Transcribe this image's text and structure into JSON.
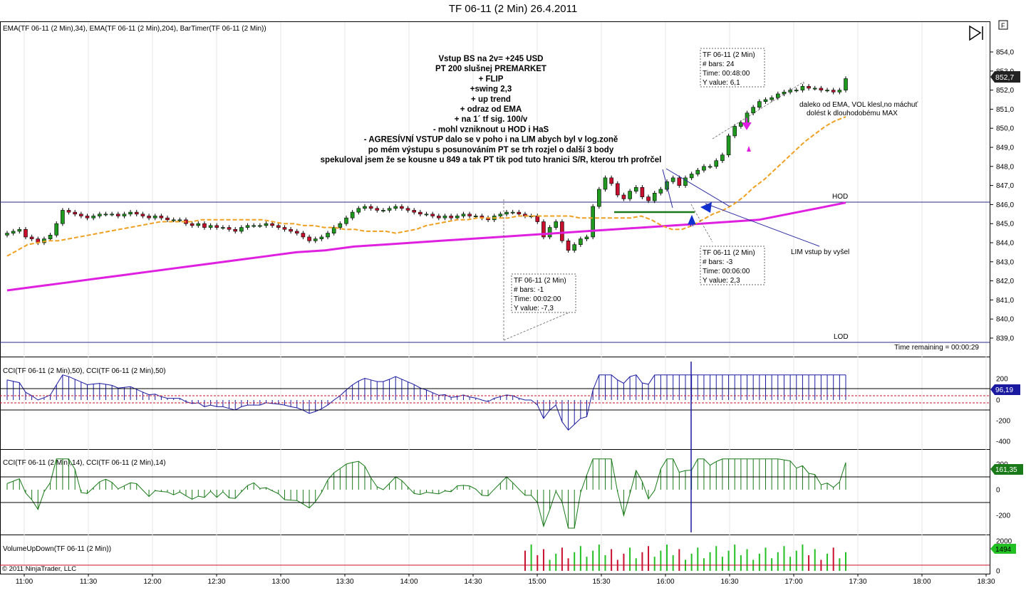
{
  "window_title": "TF 06-11 (2 Min)  26.4.2011",
  "panels": {
    "price_label": "EMA(TF 06-11 (2 Min),34), EMA(TF 06-11 (2 Min),204), BarTimer(TF 06-11 (2 Min))",
    "cci50_label": "CCI(TF 06-11 (2 Min),50), CCI(TF 06-11 (2 Min),50)",
    "cci14_label": "CCI(TF 06-11 (2 Min),14), CCI(TF 06-11 (2 Min),14)",
    "volume_label": "VolumeUpDown(TF 06-11 (2 Min))",
    "copyright": "© 2011 NinjaTrader, LLC",
    "time_remaining": "Time remaining = 00:00:29",
    "hod": "HOD",
    "lod": "LOD",
    "f_button": "F"
  },
  "annotation_lines": [
    "Vstup BS na 2v= +245 USD",
    "PT 200 slušnej PREMARKET",
    "+ FLIP",
    "+swing 2,3",
    "+ up trend",
    "+ odraz od EMA",
    "+ na 1´ tf sig. 100/v",
    "- mohl vzniknout u HOD i HaS",
    "- AGRESÍVNÍ VSTUP dalo se v poho i na LIM abych byl v log.zoně",
    "po mém výstupu s posunováním PT se trh rozjel o další 3 body",
    "spekuloval jsem že se kousne u 849 a tak PT tik pod tuto hranici S/R, kterou trh profrčel"
  ],
  "side_notes": {
    "ema_note_line1": "daleko od EMA, VOL klesl,no máchuť",
    "ema_note_line2": "dolést k dlouhodobému MAX",
    "lim_note": "LIM vstup by vyšel"
  },
  "measure_boxes": [
    {
      "lines": [
        "TF 06-11 (2 Min)",
        "# bars:   24",
        "Time:     00:48:00",
        "Y value: 6,1"
      ]
    },
    {
      "lines": [
        "TF 06-11 (2 Min)",
        "# bars:   -3",
        "Time:     00:06:00",
        "Y value: 2,3"
      ]
    },
    {
      "lines": [
        "TF 06-11 (2 Min)",
        "# bars:   -1",
        "Time:     00:02:00",
        "Y value: -7,3"
      ]
    }
  ],
  "colors": {
    "up_bar": "#1f9a1f",
    "down_bar": "#c8102e",
    "ema34": "#f0a020",
    "ema204": "#e020e0",
    "cci50": "#1a1aa0",
    "cci14": "#1a7a1a",
    "level_line": "#2a2a8a",
    "annotation_arrow": "#1030d0"
  },
  "chart_data": {
    "type": "candlestick",
    "x_axis_labels": [
      "11:00",
      "11:30",
      "12:00",
      "12:30",
      "13:00",
      "13:30",
      "14:00",
      "14:30",
      "15:00",
      "15:30",
      "16:00",
      "16:30",
      "17:00",
      "17:30",
      "18:00",
      "18:30"
    ],
    "price_axis_labels": [
      "839,0",
      "840,0",
      "841,0",
      "842,0",
      "843,0",
      "844,0",
      "845,0",
      "846,0",
      "847,0",
      "848,0",
      "849,0",
      "850,0",
      "851,0",
      "852,0",
      "853,0",
      "854,0"
    ],
    "price_ylim": [
      838.7,
      854.5
    ],
    "last_price": "852,7",
    "hod": 846.1,
    "lod": 838.8,
    "close_series": [
      844.5,
      844.6,
      844.7,
      844.3,
      844.2,
      844.0,
      844.2,
      844.4,
      845.0,
      845.7,
      845.6,
      845.5,
      845.4,
      845.3,
      845.4,
      845.5,
      845.5,
      845.5,
      845.4,
      845.5,
      845.6,
      845.5,
      845.4,
      845.3,
      845.4,
      845.3,
      845.2,
      845.2,
      845.2,
      845.0,
      844.9,
      845.0,
      844.8,
      844.9,
      844.8,
      844.8,
      844.7,
      844.6,
      844.8,
      844.9,
      844.9,
      844.9,
      845.0,
      844.9,
      844.8,
      844.7,
      844.6,
      844.5,
      844.3,
      844.1,
      844.2,
      844.3,
      844.5,
      844.8,
      845.0,
      845.3,
      845.6,
      845.8,
      845.9,
      845.8,
      845.7,
      845.7,
      845.8,
      845.9,
      845.8,
      845.7,
      845.6,
      845.5,
      845.5,
      845.4,
      845.3,
      845.4,
      845.3,
      845.4,
      845.5,
      845.4,
      845.4,
      845.3,
      845.2,
      845.4,
      845.5,
      845.6,
      845.6,
      845.5,
      845.4,
      845.4,
      845.1,
      844.3,
      844.8,
      845.1,
      844.1,
      843.6,
      843.9,
      844.2,
      844.3,
      845.9,
      846.8,
      847.4,
      847.1,
      846.5,
      846.3,
      846.7,
      846.9,
      846.4,
      846.2,
      846.6,
      846.8,
      847.2,
      847.4,
      847.0,
      847.4,
      847.6,
      847.8,
      848.0,
      848.0,
      848.3,
      848.6,
      849.6,
      850.1,
      850.3,
      850.8,
      851.1,
      851.4,
      851.5,
      851.6,
      851.8,
      851.9,
      852.0,
      852.0,
      852.2,
      852.1,
      852.1,
      852.0,
      852.0,
      851.9,
      852.0,
      852.6
    ],
    "ema34": [
      843.3,
      843.6,
      843.9,
      844.0,
      844.1,
      844.1,
      844.2,
      844.3,
      844.4,
      844.5,
      844.6,
      844.7,
      844.8,
      844.9,
      845.0,
      845.1,
      845.1,
      845.1,
      845.1,
      845.2,
      845.2,
      845.2,
      845.2,
      845.2,
      845.2,
      845.2,
      845.1,
      845.0,
      845.0,
      844.9,
      844.9,
      844.8,
      844.8,
      844.7,
      844.7,
      844.6,
      844.6,
      844.6,
      844.5,
      844.6,
      844.7,
      844.9,
      845.0,
      845.1,
      845.2,
      845.2,
      845.3,
      845.3,
      845.3,
      845.3,
      845.4,
      845.4,
      845.4,
      845.4,
      845.4,
      845.4,
      845.3,
      845.3,
      845.3,
      845.3,
      845.3,
      845.3,
      845.4,
      845.2,
      844.9,
      844.7,
      844.7,
      844.9,
      845.2,
      845.5,
      845.7,
      846.0,
      846.4,
      846.9,
      847.3,
      847.8,
      848.3,
      848.8,
      849.3,
      849.7,
      850.1,
      850.4,
      850.6
    ],
    "ema204": [
      841.5,
      841.7,
      841.9,
      842.1,
      842.3,
      842.5,
      842.7,
      842.9,
      843.1,
      843.3,
      843.5,
      843.6,
      843.8,
      843.9,
      844.0,
      844.1,
      844.2,
      844.3,
      844.4,
      844.5,
      844.6,
      844.7,
      844.8,
      844.9,
      845.0,
      845.1,
      845.2,
      845.5,
      845.8,
      846.1
    ],
    "cci50": {
      "axis_labels": [
        "200",
        "0",
        "-200",
        "-400"
      ],
      "last_value": "96,19"
    },
    "cci14": {
      "axis_labels": [
        "200",
        "0",
        "-200"
      ],
      "last_value": "161,35"
    },
    "volume": {
      "axis_labels": [
        "2000",
        "0"
      ],
      "last_value": "1494"
    }
  }
}
